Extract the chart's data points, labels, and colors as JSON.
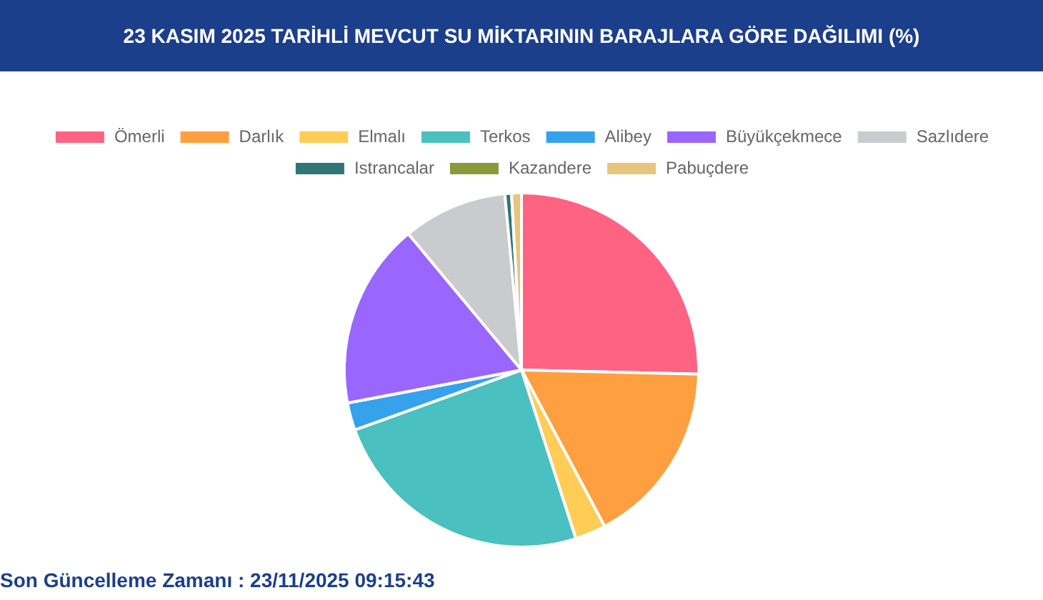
{
  "chart_data": {
    "type": "pie",
    "title": "23 KASIM 2025 TARİHLİ MEVCUT SU MİKTARININ BARAJLARA GÖRE DAĞILIMI (%)",
    "categories": [
      "Ömerli",
      "Darlık",
      "Elmalı",
      "Terkos",
      "Alibey",
      "Büyükçekmece",
      "Sazlıdere",
      "Istrancalar",
      "Kazandere",
      "Pabuçdere"
    ],
    "values": [
      25.3,
      16.8,
      2.8,
      24.4,
      2.5,
      16.9,
      9.5,
      0.6,
      null,
      0.9
    ],
    "colors": [
      "#ff6384",
      "#ff9f40",
      "#ffcd56",
      "#4bc0c0",
      "#36a2eb",
      "#9966ff",
      "#c9cbcf",
      "#2f7675",
      "#8a9a3b",
      "#e8c57d"
    ],
    "legend": "top",
    "annotations": [
      "Son Güncelleme Zamanı : 23/11/2025 09:15:43"
    ]
  }
}
